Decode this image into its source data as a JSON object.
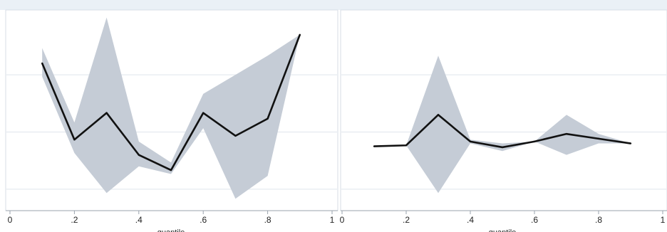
{
  "colors": {
    "band": "#c5ccd6",
    "line": "#111111",
    "grid": "#dfe5ec",
    "panel_border": "#d7dee6",
    "top_strip": "#eaf0f6",
    "axis": "#9aa3ad"
  },
  "chart_data": [
    {
      "type": "area",
      "xlabel": "quantile",
      "xlim": [
        0,
        1
      ],
      "ylim": [
        0,
        1
      ],
      "xticks": [
        "0",
        ".2",
        ".4",
        ".6",
        ".8",
        "1"
      ],
      "grid": true,
      "x": [
        0.1,
        0.2,
        0.3,
        0.4,
        0.5,
        0.6,
        0.7,
        0.8,
        0.9
      ],
      "series": [
        {
          "values": [
            0.75,
            0.35,
            0.49,
            0.27,
            0.19,
            0.49,
            0.37,
            0.46,
            0.9
          ],
          "lower": [
            0.68,
            0.28,
            0.07,
            0.21,
            0.17,
            0.41,
            0.04,
            0.16,
            0.9
          ],
          "upper": [
            0.83,
            0.44,
            0.99,
            0.34,
            0.23,
            0.59,
            0.69,
            0.79,
            0.9
          ]
        }
      ]
    },
    {
      "type": "area",
      "xlabel": "quantile",
      "xlim": [
        0,
        1
      ],
      "ylim": [
        0,
        1
      ],
      "xticks": [
        "0",
        ".2",
        ".4",
        ".6",
        ".8",
        "1"
      ],
      "grid": true,
      "x": [
        0.1,
        0.2,
        0.3,
        0.4,
        0.5,
        0.6,
        0.7,
        0.8,
        0.9
      ],
      "series": [
        {
          "values": [
            0.315,
            0.32,
            0.48,
            0.34,
            0.31,
            0.34,
            0.38,
            0.355,
            0.33
          ],
          "lower": [
            0.315,
            0.32,
            0.07,
            0.33,
            0.29,
            0.34,
            0.27,
            0.33,
            0.33
          ],
          "upper": [
            0.315,
            0.32,
            0.79,
            0.35,
            0.33,
            0.34,
            0.48,
            0.38,
            0.33
          ]
        }
      ]
    }
  ]
}
